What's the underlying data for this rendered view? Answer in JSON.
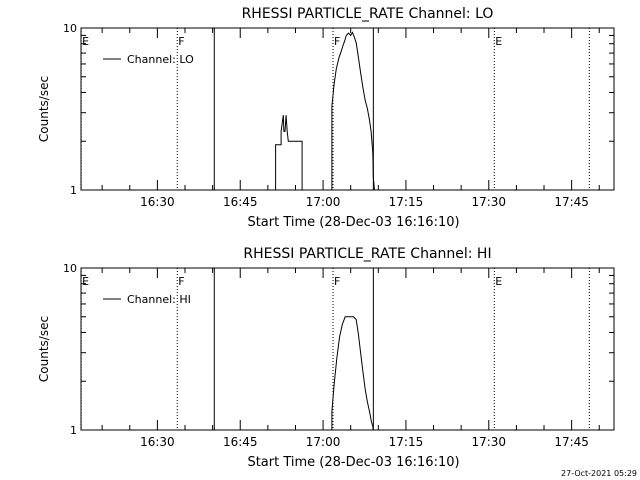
{
  "footer": {
    "timestamp": "27-Oct-2021 05:29"
  },
  "chart_data": [
    {
      "type": "line",
      "title": "RHESSI PARTICLE_RATE Channel: LO",
      "xlabel": "Start Time (28-Dec-03 16:16:10)",
      "ylabel": "Counts/sec",
      "yscale": "log",
      "ylim": [
        1,
        10
      ],
      "ytick_labels": [
        "1",
        "10"
      ],
      "xlim_minutes": [
        16.17,
        112.67
      ],
      "xtick_labels": [
        "16:30",
        "16:45",
        "17:00",
        "17:15",
        "17:30",
        "17:45"
      ],
      "xtick_minutes": [
        30,
        45,
        60,
        75,
        90,
        105
      ],
      "legend": {
        "position": "top-left",
        "entries": [
          "Channel: LO"
        ]
      },
      "grid": false,
      "markers": [
        {
          "label": "E",
          "minute": 16.2,
          "style": "dotted"
        },
        {
          "label": "F",
          "minute": 33.6,
          "style": "dotted"
        },
        {
          "label": "",
          "minute": 40.3,
          "style": "solid"
        },
        {
          "label": "F",
          "minute": 61.8,
          "style": "dotted"
        },
        {
          "label": "",
          "minute": 69.1,
          "style": "solid"
        },
        {
          "label": "E",
          "minute": 91.0,
          "style": "dotted"
        },
        {
          "label": "",
          "minute": 108.2,
          "style": "dotted"
        }
      ],
      "series": [
        {
          "name": "Channel: LO",
          "x": [
            51.4,
            51.4,
            52.4,
            52.4,
            52.8,
            52.9,
            53.1,
            53.3,
            53.5,
            53.7,
            53.8,
            54.0,
            55.5,
            56.2,
            56.2,
            57.5,
            57.5,
            61.6,
            61.6,
            62.0,
            62.4,
            62.9,
            63.3,
            63.6,
            63.9,
            64.2,
            64.6,
            65.0,
            65.3,
            65.6,
            66.0,
            66.4,
            66.8,
            67.2,
            67.6,
            68.0,
            68.4,
            68.7,
            69.0,
            69.1,
            69.3
          ],
          "y": [
            1,
            1.9,
            1.9,
            2.3,
            2.9,
            2.3,
            2.3,
            2.9,
            2.3,
            2.0,
            2.0,
            2.0,
            2.0,
            2.0,
            1,
            1,
            1,
            1,
            3.3,
            4.5,
            5.6,
            6.6,
            7.2,
            7.8,
            8.3,
            9.0,
            9.3,
            9.0,
            9.4,
            8.9,
            8.1,
            6.6,
            5.3,
            4.3,
            3.6,
            3.2,
            2.7,
            2.3,
            1.7,
            1.2,
            1
          ]
        }
      ]
    },
    {
      "type": "line",
      "title": "RHESSI PARTICLE_RATE Channel: HI",
      "xlabel": "Start Time (28-Dec-03 16:16:10)",
      "ylabel": "Counts/sec",
      "yscale": "log",
      "ylim": [
        1,
        10
      ],
      "ytick_labels": [
        "1",
        "10"
      ],
      "xlim_minutes": [
        16.17,
        112.67
      ],
      "xtick_labels": [
        "16:30",
        "16:45",
        "17:00",
        "17:15",
        "17:30",
        "17:45"
      ],
      "xtick_minutes": [
        30,
        45,
        60,
        75,
        90,
        105
      ],
      "legend": {
        "position": "top-left",
        "entries": [
          "Channel: HI"
        ]
      },
      "grid": false,
      "markers": [
        {
          "label": "E",
          "minute": 16.2,
          "style": "dotted"
        },
        {
          "label": "F",
          "minute": 33.6,
          "style": "dotted"
        },
        {
          "label": "",
          "minute": 40.3,
          "style": "solid"
        },
        {
          "label": "F",
          "minute": 61.8,
          "style": "dotted"
        },
        {
          "label": "",
          "minute": 69.1,
          "style": "solid"
        },
        {
          "label": "E",
          "minute": 91.0,
          "style": "dotted"
        },
        {
          "label": "",
          "minute": 108.2,
          "style": "dotted"
        }
      ],
      "series": [
        {
          "name": "Channel: HI",
          "x": [
            61.6,
            61.6,
            62.0,
            62.5,
            63.0,
            63.5,
            64.0,
            64.5,
            65.0,
            65.5,
            66.0,
            66.4,
            66.8,
            67.2,
            67.6,
            68.0,
            68.4,
            68.7,
            69.0,
            69.1
          ],
          "y": [
            1,
            1.3,
            1.9,
            2.8,
            3.8,
            4.5,
            5.0,
            5.0,
            5.0,
            5.0,
            4.8,
            3.9,
            3.0,
            2.3,
            1.8,
            1.5,
            1.3,
            1.15,
            1.05,
            1
          ]
        }
      ]
    }
  ]
}
